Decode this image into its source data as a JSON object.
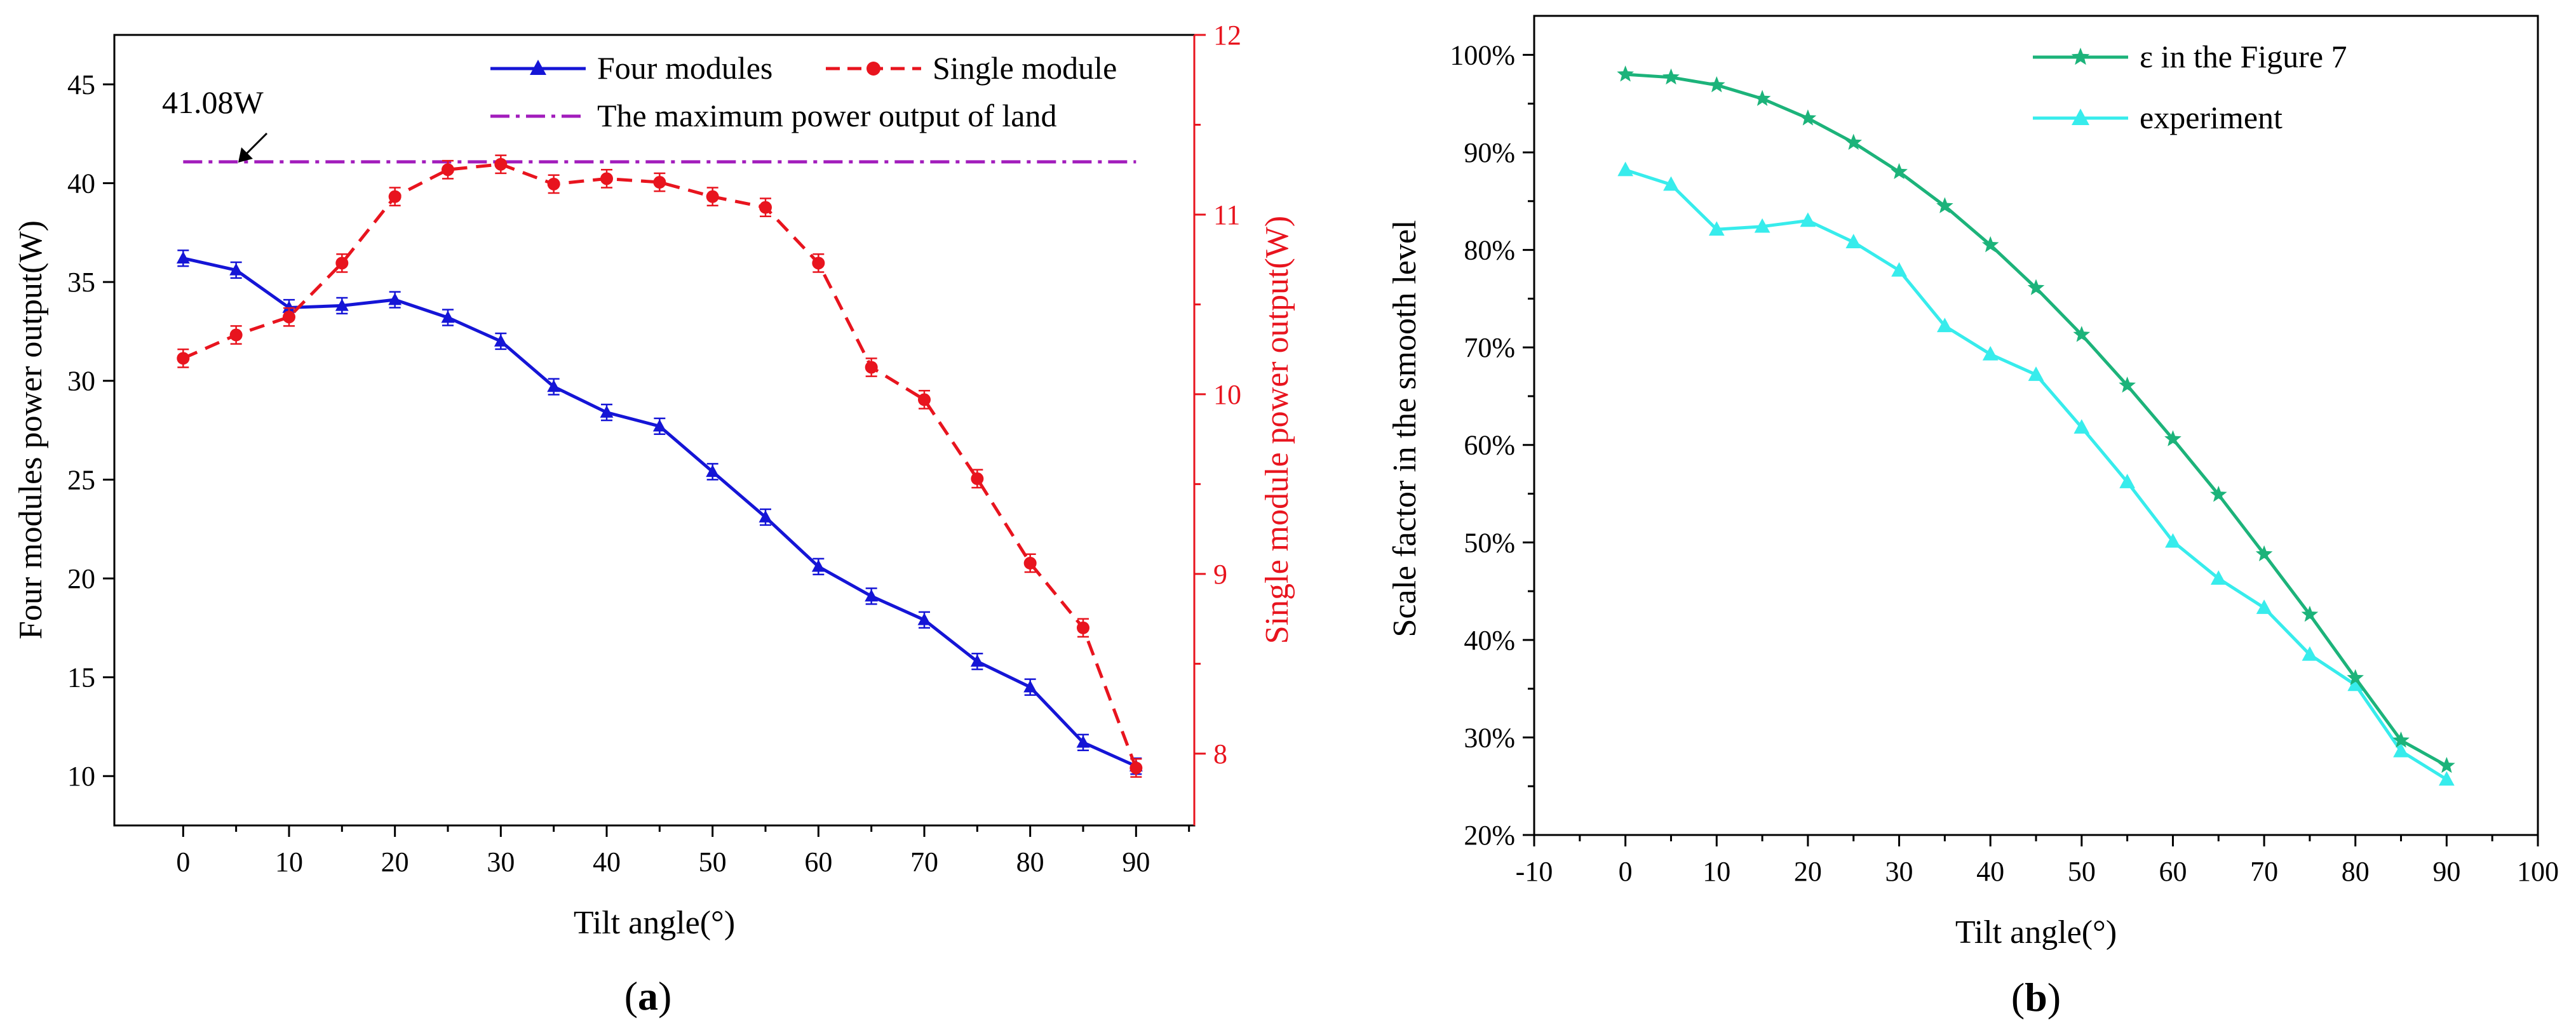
{
  "chart_data": [
    {
      "type": "line",
      "panel_label": "a",
      "xlabel": "Tilt angle(°)",
      "ylabel": "Four modules power output(W)",
      "y2label": "Single module power output(W)",
      "x_ticks": [
        "0",
        "10",
        "20",
        "30",
        "40",
        "50",
        "60",
        "70",
        "80",
        "90"
      ],
      "y_ticks": [
        "10",
        "15",
        "20",
        "25",
        "30",
        "35",
        "40",
        "45"
      ],
      "y2_ticks": [
        "8",
        "9",
        "10",
        "11",
        "12"
      ],
      "xlim": [
        -6.5,
        95.5
      ],
      "ylim": [
        7.5,
        47.5
      ],
      "y2lim": [
        7.6,
        12
      ],
      "x": [
        0,
        5,
        10,
        15,
        20,
        25,
        30,
        35,
        40,
        45,
        50,
        55,
        60,
        65,
        70,
        75,
        80,
        85,
        90
      ],
      "series": [
        {
          "name": "Four modules",
          "axis": "left",
          "color": "#1515d6",
          "marker": "triangle",
          "line": "solid",
          "values": [
            36.2,
            35.6,
            33.7,
            33.8,
            34.1,
            33.2,
            32.0,
            29.7,
            28.4,
            27.7,
            25.4,
            23.1,
            20.6,
            19.1,
            17.9,
            15.8,
            14.5,
            11.7,
            10.5
          ]
        },
        {
          "name": "Single module",
          "axis": "right",
          "color": "#e8141e",
          "marker": "circle",
          "line": "dashed",
          "values": [
            10.2,
            10.33,
            10.43,
            10.73,
            11.1,
            11.25,
            11.28,
            11.17,
            11.2,
            11.18,
            11.1,
            11.04,
            10.73,
            10.15,
            9.97,
            9.53,
            9.06,
            8.7,
            7.92
          ]
        }
      ],
      "reference_line": {
        "name": "The maximum power output of land",
        "value": 41.08,
        "color": "#a21cbc",
        "x_range": [
          0,
          90
        ]
      },
      "annotation": "41.08W"
    },
    {
      "type": "line",
      "panel_label": "b",
      "xlabel": "Tilt angle(°)",
      "ylabel": "Scale factor in the smooth level",
      "x_ticks": [
        "-10",
        "0",
        "10",
        "20",
        "30",
        "40",
        "50",
        "60",
        "70",
        "80",
        "90",
        "100"
      ],
      "y_ticks": [
        "20%",
        "30%",
        "40%",
        "50%",
        "60%",
        "70%",
        "80%",
        "90%",
        "100%"
      ],
      "xlim": [
        -10,
        100
      ],
      "ylim": [
        20,
        104
      ],
      "x": [
        0,
        5,
        10,
        15,
        20,
        25,
        30,
        35,
        40,
        45,
        50,
        55,
        60,
        65,
        70,
        75,
        80,
        85,
        90
      ],
      "series": [
        {
          "name": "ε in the Figure 7",
          "color": "#1cb37a",
          "marker": "star",
          "values": [
            98.0,
            97.7,
            96.9,
            95.5,
            93.5,
            91.0,
            88.0,
            84.5,
            80.5,
            76.1,
            71.3,
            66.1,
            60.6,
            54.9,
            48.8,
            42.6,
            36.1,
            29.7,
            27.1
          ]
        },
        {
          "name": "experiment",
          "color": "#37ecec",
          "marker": "triangle",
          "values": [
            88.2,
            86.7,
            82.1,
            82.4,
            83.0,
            80.8,
            77.9,
            72.2,
            69.3,
            67.2,
            61.8,
            56.2,
            50.1,
            46.3,
            43.3,
            38.5,
            35.4,
            28.6,
            25.7
          ]
        }
      ]
    }
  ]
}
